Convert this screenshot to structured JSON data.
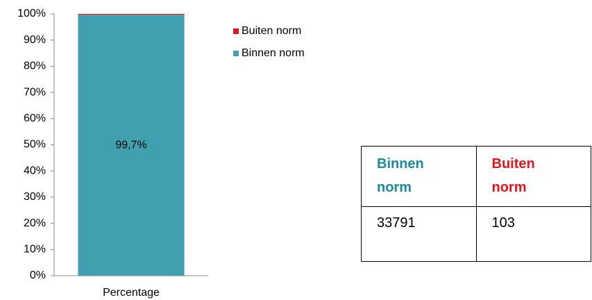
{
  "chart_data": {
    "type": "stacked_bar",
    "categories": [
      "Percentage"
    ],
    "series": [
      {
        "name": "Binnen norm",
        "color": "#40a0b0",
        "values": [
          99.7
        ],
        "value_labels": [
          "99,7%"
        ]
      },
      {
        "name": "Buiten norm",
        "color": "#e8141b",
        "values": [
          0.3
        ]
      }
    ],
    "ylim": [
      0,
      100
    ],
    "yticks": [
      {
        "value": 0,
        "label": "0%"
      },
      {
        "value": 10,
        "label": "10%"
      },
      {
        "value": 20,
        "label": "20%"
      },
      {
        "value": 30,
        "label": "30%"
      },
      {
        "value": 40,
        "label": "40%"
      },
      {
        "value": 50,
        "label": "50%"
      },
      {
        "value": 60,
        "label": "60%"
      },
      {
        "value": 70,
        "label": "70%"
      },
      {
        "value": 80,
        "label": "80%"
      },
      {
        "value": 90,
        "label": "90%"
      },
      {
        "value": 100,
        "label": "100%"
      }
    ],
    "grid": false,
    "legend": "right"
  },
  "table": {
    "header": [
      "Binnen norm",
      "Buiten norm"
    ],
    "rows": [
      [
        33791,
        103
      ]
    ]
  }
}
